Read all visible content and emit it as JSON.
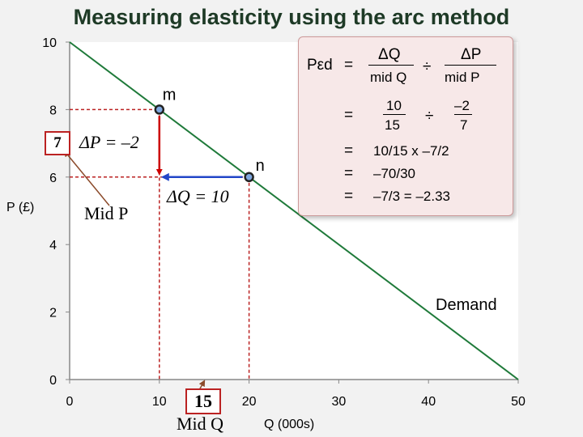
{
  "title": "Measuring elasticity using the arc method",
  "chart_data": {
    "type": "line",
    "xlabel": "Q (000s)",
    "ylabel": "P (£)",
    "xlim": [
      0,
      50
    ],
    "ylim": [
      0,
      10
    ],
    "x_ticks": [
      "0",
      "10",
      "20",
      "30",
      "40",
      "50"
    ],
    "y_ticks": [
      "0",
      "2",
      "4",
      "6",
      "8",
      "10"
    ],
    "series": [
      {
        "name": "Demand",
        "x": [
          0,
          50
        ],
        "y": [
          10,
          0
        ]
      }
    ],
    "points": [
      {
        "name": "m",
        "x": 10,
        "y": 8
      },
      {
        "name": "n",
        "x": 20,
        "y": 6
      }
    ],
    "mid_points": {
      "mid_q": 15,
      "mid_p": 7
    },
    "grid": false
  },
  "annotations": {
    "delta_p": "ΔP = –2",
    "delta_q": "ΔQ = 10",
    "mid_p_label": "Mid P",
    "mid_q_label": "Mid Q",
    "mid_p_value": "7",
    "mid_q_value": "15",
    "demand_label": "Demand"
  },
  "formula": {
    "lhs": "Pεd",
    "eq": "=",
    "num1": "ΔQ",
    "den1": "mid Q",
    "div": "÷",
    "num2": "ΔP",
    "den2": "mid P",
    "step2_num1": "10",
    "step2_den1": "15",
    "step2_num2": "–2",
    "step2_den2": "7",
    "step3": "10/15  x  –7/2",
    "step4": "–70/30",
    "step5": "–7/3  =  –2.33"
  }
}
